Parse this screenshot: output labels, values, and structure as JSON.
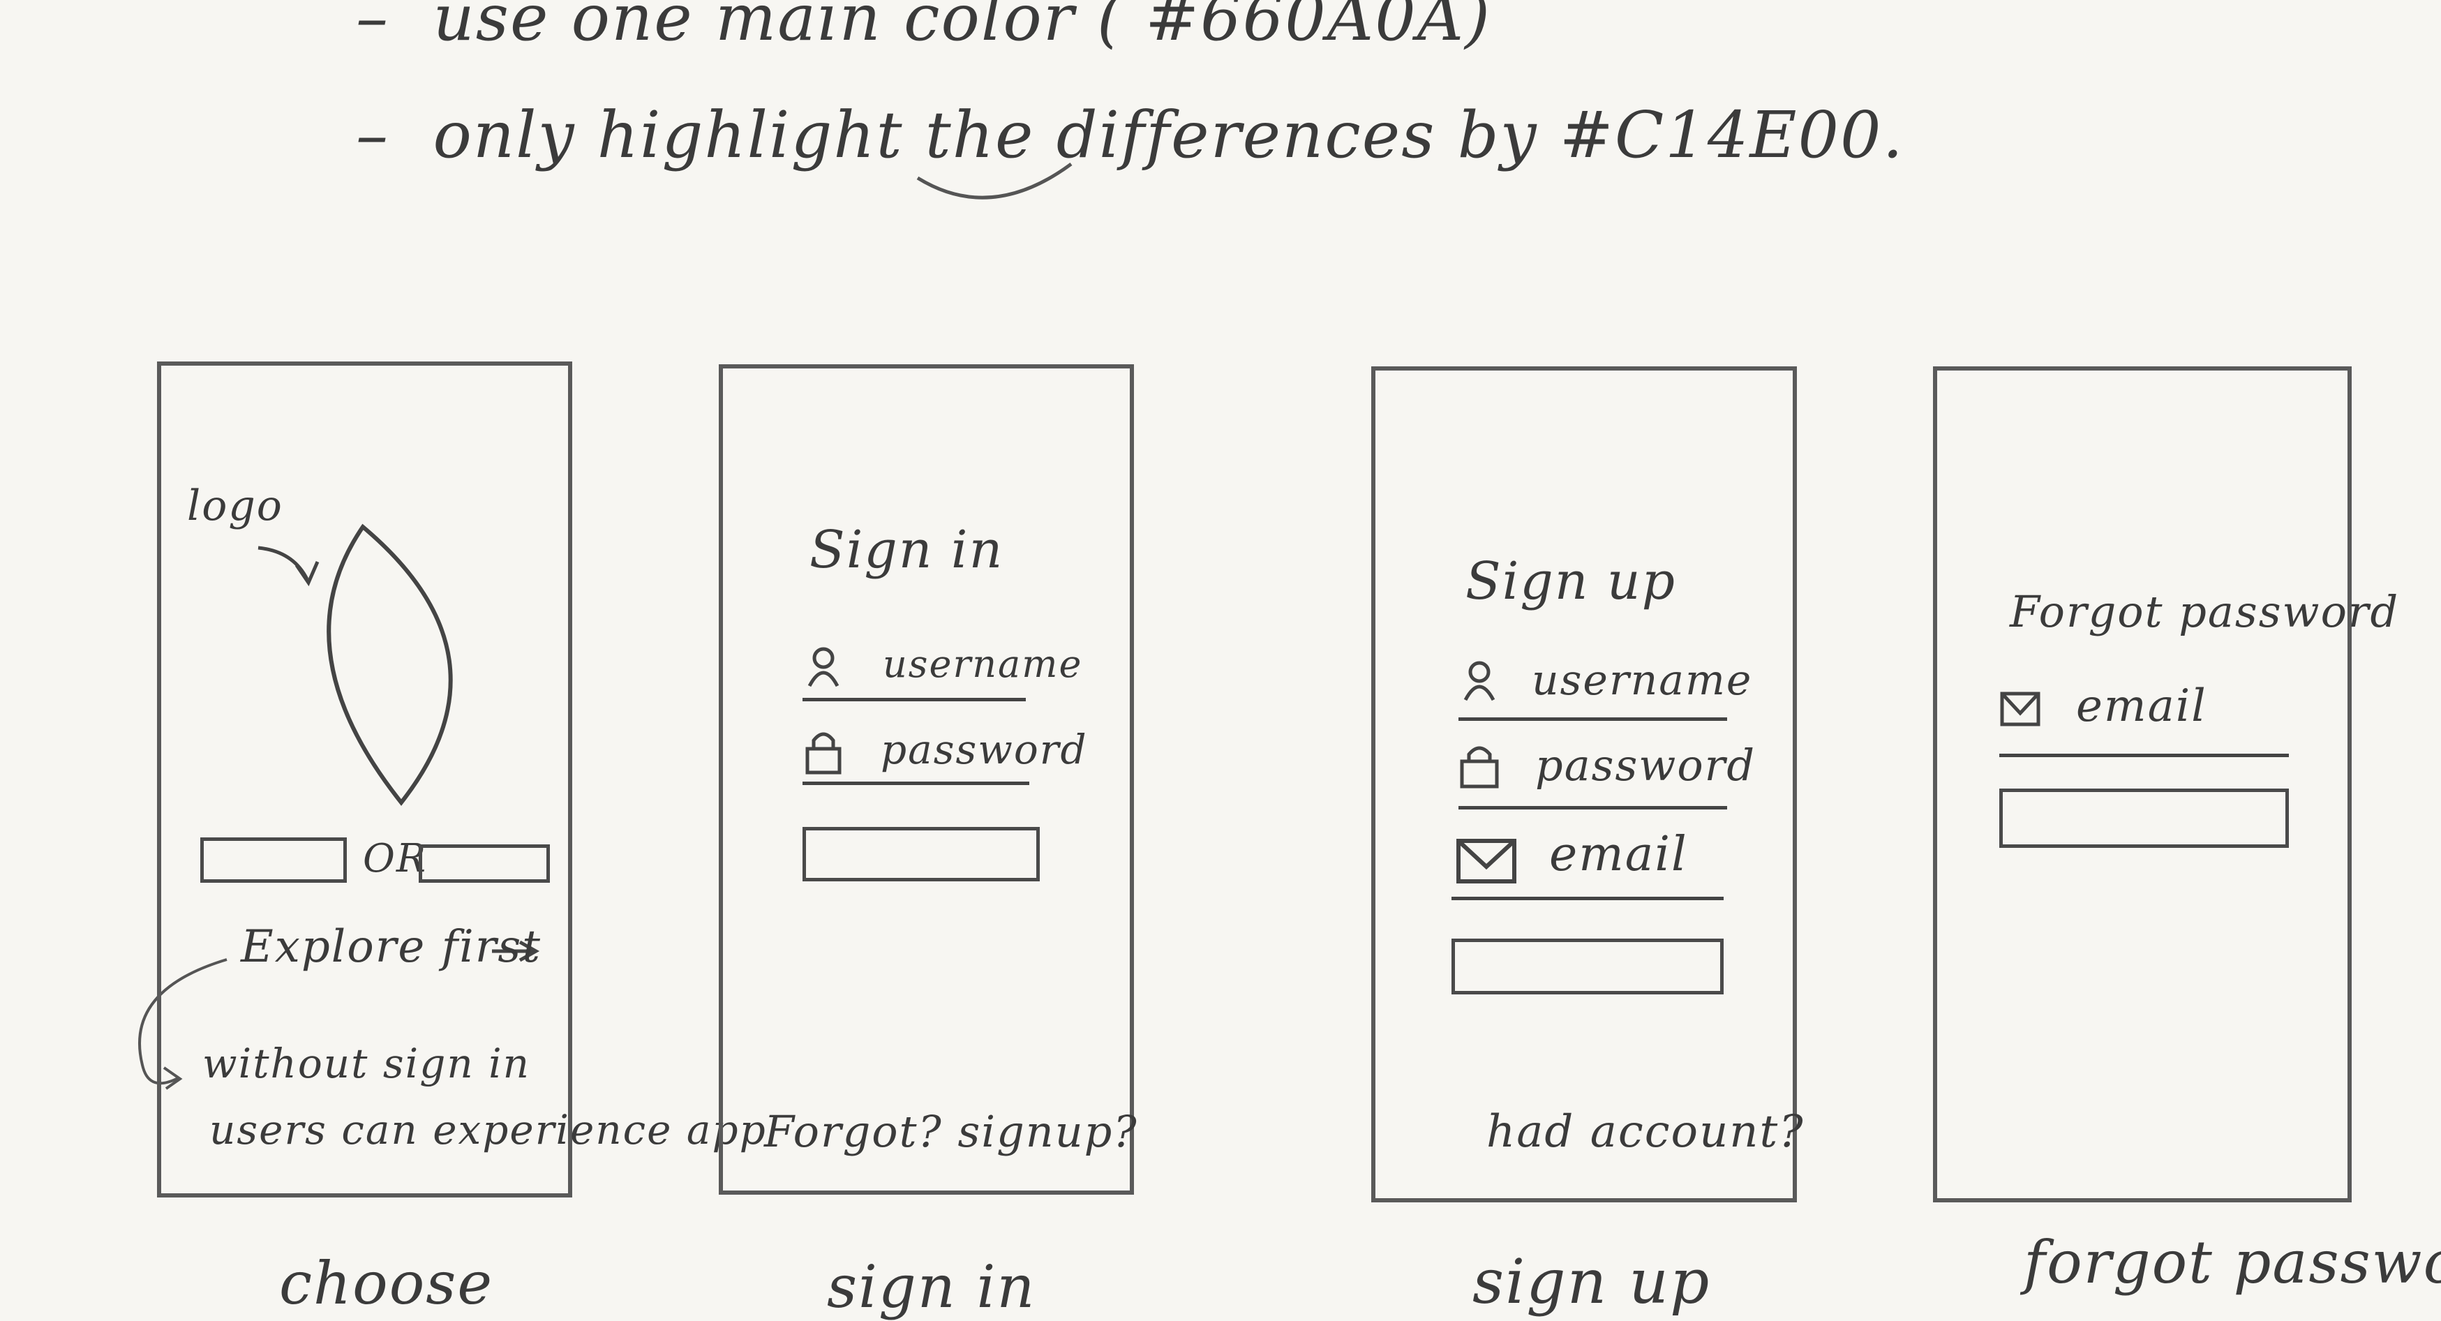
{
  "notes": {
    "line1": "use one main color ( #660A0A)",
    "line2": "only highlight the differences by #C14E00."
  },
  "colors": {
    "main": "#660A0A",
    "highlight": "#C14E00"
  },
  "screens": {
    "choose": {
      "caption": "choose",
      "logo_label": "logo",
      "or_label": "OR",
      "explore_label": "Explore first",
      "annotation_line1": "without sign in",
      "annotation_line2": "users can experience app"
    },
    "sign_in": {
      "caption": "sign in",
      "title": "Sign in",
      "username": "username",
      "password": "password",
      "footer": "Forgot? signup?"
    },
    "sign_up": {
      "caption": "sign up",
      "title": "Sign up",
      "username": "username",
      "password": "password",
      "email": "email",
      "footer": "had account?"
    },
    "forgot_password": {
      "caption": "forgot password.",
      "title": "Forgot password",
      "email": "email"
    }
  },
  "icons": [
    "user-icon",
    "lock-icon",
    "mail-icon",
    "arrow-right-icon",
    "logo-placeholder-icon"
  ]
}
